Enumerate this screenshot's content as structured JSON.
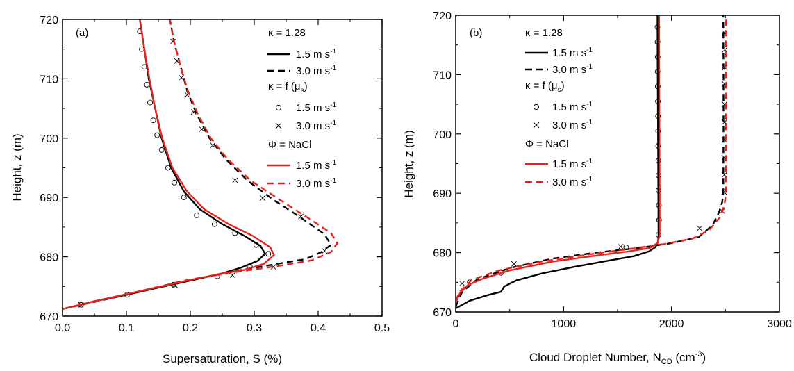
{
  "chart_data": [
    {
      "type": "line",
      "panel_label": "(a)",
      "xlabel": "Supersaturation, S (%)",
      "ylabel": "Height, z (m)",
      "xlim": [
        0.0,
        0.5
      ],
      "ylim": [
        670,
        720
      ],
      "xticks": [
        "0.0",
        "0.1",
        "0.2",
        "0.3",
        "0.4",
        "0.5"
      ],
      "yticks": [
        "670",
        "680",
        "690",
        "700",
        "710",
        "720"
      ],
      "grid": false,
      "legend_position": "top-right",
      "legend": {
        "header1": "κ = 1.28",
        "header2": "κ = f (μ",
        "header2_sub": "s",
        "header2_close": ")",
        "header3": "Φ = NaCl",
        "unit_prefix_1": "1.5 m s",
        "unit_prefix_2": "3.0 m s",
        "unit_sup": "-1"
      },
      "series": [
        {
          "name": "κ = 1.28, 1.5 m s-1",
          "style": "solid",
          "color": "#000000",
          "points": [
            [
              0.0,
              671.2
            ],
            [
              0.05,
              672.5
            ],
            [
              0.1,
              673.6
            ],
            [
              0.15,
              674.8
            ],
            [
              0.2,
              676.0
            ],
            [
              0.25,
              677.2
            ],
            [
              0.28,
              678.2
            ],
            [
              0.305,
              679.3
            ],
            [
              0.317,
              680.5
            ],
            [
              0.31,
              681.8
            ],
            [
              0.285,
              683.5
            ],
            [
              0.25,
              685.5
            ],
            [
              0.215,
              688.0
            ],
            [
              0.19,
              691.0
            ],
            [
              0.17,
              695.0
            ],
            [
              0.155,
              700.0
            ],
            [
              0.145,
              705.0
            ],
            [
              0.135,
              710.0
            ],
            [
              0.128,
              715.0
            ],
            [
              0.121,
              720.0
            ]
          ]
        },
        {
          "name": "κ = 1.28, 3.0 m s-1",
          "style": "dashed",
          "color": "#000000",
          "points": [
            [
              0.0,
              671.2
            ],
            [
              0.1,
              673.6
            ],
            [
              0.2,
              676.1
            ],
            [
              0.27,
              677.6
            ],
            [
              0.33,
              678.7
            ],
            [
              0.38,
              679.6
            ],
            [
              0.405,
              680.8
            ],
            [
              0.42,
              682.0
            ],
            [
              0.41,
              683.8
            ],
            [
              0.37,
              686.8
            ],
            [
              0.33,
              689.6
            ],
            [
              0.29,
              692.8
            ],
            [
              0.255,
              696.5
            ],
            [
              0.23,
              700.0
            ],
            [
              0.21,
              704.0
            ],
            [
              0.195,
              708.0
            ],
            [
              0.185,
              712.0
            ],
            [
              0.175,
              716.0
            ],
            [
              0.168,
              720.0
            ]
          ]
        },
        {
          "name": "κ = f (μs), 1.5 m s-1",
          "style": "circles",
          "color": "#000000",
          "points": [
            [
              0.029,
              671.9
            ],
            [
              0.101,
              673.6
            ],
            [
              0.174,
              675.3
            ],
            [
              0.242,
              676.7
            ],
            [
              0.293,
              678.4
            ],
            [
              0.322,
              680.5
            ],
            [
              0.303,
              682.0
            ],
            [
              0.27,
              684.0
            ],
            [
              0.238,
              685.5
            ],
            [
              0.21,
              687.0
            ],
            [
              0.19,
              690.0
            ],
            [
              0.175,
              692.5
            ],
            [
              0.165,
              695.0
            ],
            [
              0.155,
              698.0
            ],
            [
              0.148,
              700.5
            ],
            [
              0.142,
              703.0
            ],
            [
              0.137,
              706.0
            ],
            [
              0.132,
              709.0
            ],
            [
              0.128,
              712.0
            ],
            [
              0.124,
              715.0
            ],
            [
              0.121,
              718.0
            ]
          ]
        },
        {
          "name": "κ = f (μs), 3.0 m s-1",
          "style": "crosses",
          "color": "#000000",
          "points": [
            [
              0.029,
              671.9
            ],
            [
              0.176,
              675.2
            ],
            [
              0.266,
              676.9
            ],
            [
              0.33,
              678.3
            ],
            [
              0.41,
              681.0
            ],
            [
              0.373,
              686.8
            ],
            [
              0.313,
              689.9
            ],
            [
              0.27,
              692.9
            ],
            [
              0.235,
              698.8
            ],
            [
              0.218,
              701.5
            ],
            [
              0.205,
              704.4
            ],
            [
              0.195,
              707.3
            ],
            [
              0.186,
              710.2
            ],
            [
              0.179,
              713.0
            ],
            [
              0.173,
              716.3
            ]
          ]
        },
        {
          "name": "Φ = NaCl, 1.5 m s-1",
          "style": "solid",
          "color": "#e8231e",
          "points": [
            [
              0.0,
              671.2
            ],
            [
              0.05,
              672.5
            ],
            [
              0.1,
              673.7
            ],
            [
              0.15,
              674.9
            ],
            [
              0.2,
              676.1
            ],
            [
              0.25,
              677.2
            ],
            [
              0.285,
              677.8
            ],
            [
              0.315,
              678.8
            ],
            [
              0.331,
              680.3
            ],
            [
              0.325,
              681.6
            ],
            [
              0.298,
              683.5
            ],
            [
              0.26,
              685.5
            ],
            [
              0.222,
              688.0
            ],
            [
              0.195,
              691.0
            ],
            [
              0.172,
              695.0
            ],
            [
              0.156,
              700.0
            ],
            [
              0.145,
              705.0
            ],
            [
              0.136,
              710.0
            ],
            [
              0.128,
              715.0
            ],
            [
              0.121,
              720.0
            ]
          ]
        },
        {
          "name": "Φ = NaCl, 3.0 m s-1",
          "style": "dashed",
          "color": "#e8231e",
          "points": [
            [
              0.0,
              671.2
            ],
            [
              0.1,
              673.7
            ],
            [
              0.2,
              676.2
            ],
            [
              0.27,
              677.4
            ],
            [
              0.34,
              678.5
            ],
            [
              0.39,
              679.4
            ],
            [
              0.42,
              680.8
            ],
            [
              0.43,
              682.3
            ],
            [
              0.42,
              684.0
            ],
            [
              0.385,
              686.5
            ],
            [
              0.34,
              689.6
            ],
            [
              0.295,
              692.8
            ],
            [
              0.258,
              696.5
            ],
            [
              0.232,
              700.0
            ],
            [
              0.212,
              704.0
            ],
            [
              0.196,
              708.0
            ],
            [
              0.185,
              712.0
            ],
            [
              0.175,
              716.0
            ],
            [
              0.168,
              720.0
            ]
          ]
        }
      ]
    },
    {
      "type": "line",
      "panel_label": "(b)",
      "xlabel": "Cloud Droplet Number, N",
      "xlabel_sub": "CD",
      "xlabel_unit_open": " (cm",
      "xlabel_unit_sup": "-3",
      "xlabel_unit_close": ")",
      "ylabel": "Height, z (m)",
      "xlim": [
        0,
        3000
      ],
      "ylim": [
        670,
        720
      ],
      "xticks": [
        "0",
        "1000",
        "2000",
        "3000"
      ],
      "yticks": [
        "670",
        "680",
        "690",
        "700",
        "710",
        "720"
      ],
      "grid": false,
      "legend_position": "top-left",
      "legend": {
        "header1": "κ = 1.28",
        "header2": "κ = f (μ",
        "header2_sub": "s",
        "header2_close": ")",
        "header3": "Φ = NaCl",
        "unit_prefix_1": "1.5 m s",
        "unit_prefix_2": "3.0 m s",
        "unit_sup": "-1"
      },
      "series": [
        {
          "name": "κ = 1.28, 1.5 m s-1",
          "style": "solid",
          "color": "#000000",
          "points": [
            [
              0,
              670.6
            ],
            [
              40,
              671.0
            ],
            [
              130,
              671.9
            ],
            [
              290,
              672.8
            ],
            [
              420,
              673.4
            ],
            [
              450,
              674.3
            ],
            [
              560,
              675.3
            ],
            [
              800,
              676.5
            ],
            [
              1100,
              677.6
            ],
            [
              1400,
              678.6
            ],
            [
              1650,
              679.4
            ],
            [
              1790,
              680.2
            ],
            [
              1850,
              680.9
            ],
            [
              1875,
              681.8
            ],
            [
              1880,
              683.0
            ],
            [
              1878,
              690.0
            ],
            [
              1875,
              700.0
            ],
            [
              1872,
              710.0
            ],
            [
              1870,
              720.0
            ]
          ]
        },
        {
          "name": "κ = 1.28, 3.0 m s-1",
          "style": "dashed",
          "color": "#000000",
          "points": [
            [
              0,
              670.9
            ],
            [
              60,
              673.4
            ],
            [
              200,
              675.5
            ],
            [
              500,
              677.4
            ],
            [
              900,
              679.0
            ],
            [
              1300,
              680.0
            ],
            [
              1700,
              680.8
            ],
            [
              2000,
              681.6
            ],
            [
              2250,
              682.6
            ],
            [
              2380,
              684.6
            ],
            [
              2440,
              686.8
            ],
            [
              2470,
              688.5
            ],
            [
              2480,
              690.0
            ],
            [
              2482,
              700.0
            ],
            [
              2482,
              710.0
            ],
            [
              2480,
              720.0
            ]
          ]
        },
        {
          "name": "κ = f (μs), 1.5 m s-1",
          "style": "circles",
          "color": "#000000",
          "points": [
            [
              130,
              675.0
            ],
            [
              420,
              676.6
            ],
            [
              1580,
              680.9
            ],
            [
              1880,
              683.0
            ],
            [
              1885,
              685.5
            ],
            [
              1883,
              688.0
            ],
            [
              1880,
              690.5
            ],
            [
              1880,
              693.0
            ],
            [
              1878,
              695.5
            ],
            [
              1877,
              698.0
            ],
            [
              1876,
              700.5
            ],
            [
              1875,
              703.0
            ],
            [
              1874,
              705.5
            ],
            [
              1873,
              708.0
            ],
            [
              1872,
              710.5
            ],
            [
              1872,
              713.0
            ],
            [
              1871,
              715.5
            ],
            [
              1870,
              718.0
            ]
          ]
        },
        {
          "name": "κ = f (μs), 3.0 m s-1",
          "style": "crosses",
          "color": "#000000",
          "points": [
            [
              60,
              674.8
            ],
            [
              540,
              678.1
            ],
            [
              1530,
              681.0
            ],
            [
              2260,
              684.1
            ],
            [
              2470,
              687.0
            ],
            [
              2488,
              690.2
            ],
            [
              2490,
              693.1
            ],
            [
              2490,
              696.0
            ],
            [
              2491,
              699.0
            ],
            [
              2492,
              702.0
            ],
            [
              2492,
              705.0
            ],
            [
              2493,
              708.4
            ],
            [
              2494,
              711.2
            ],
            [
              2494,
              714.2
            ],
            [
              2495,
              717.0
            ]
          ]
        },
        {
          "name": "Φ = NaCl, 1.5 m s-1",
          "style": "solid",
          "color": "#e8231e",
          "points": [
            [
              0,
              671.6
            ],
            [
              40,
              673.2
            ],
            [
              110,
              674.5
            ],
            [
              250,
              675.6
            ],
            [
              500,
              677.0
            ],
            [
              900,
              678.5
            ],
            [
              1300,
              679.5
            ],
            [
              1600,
              680.2
            ],
            [
              1800,
              680.8
            ],
            [
              1870,
              681.6
            ],
            [
              1890,
              683.0
            ],
            [
              1890,
              690.0
            ],
            [
              1888,
              700.0
            ],
            [
              1886,
              710.0
            ],
            [
              1885,
              720.0
            ]
          ]
        },
        {
          "name": "Φ = NaCl, 3.0 m s-1",
          "style": "dashed",
          "color": "#e8231e",
          "points": [
            [
              0,
              671.9
            ],
            [
              40,
              673.5
            ],
            [
              150,
              675.4
            ],
            [
              400,
              677.0
            ],
            [
              800,
              678.5
            ],
            [
              1200,
              679.6
            ],
            [
              1600,
              680.6
            ],
            [
              1950,
              681.5
            ],
            [
              2200,
              682.4
            ],
            [
              2350,
              683.8
            ],
            [
              2450,
              686.0
            ],
            [
              2490,
              688.0
            ],
            [
              2505,
              690.0
            ],
            [
              2505,
              700.0
            ],
            [
              2505,
              710.0
            ],
            [
              2505,
              720.0
            ]
          ]
        }
      ]
    }
  ]
}
